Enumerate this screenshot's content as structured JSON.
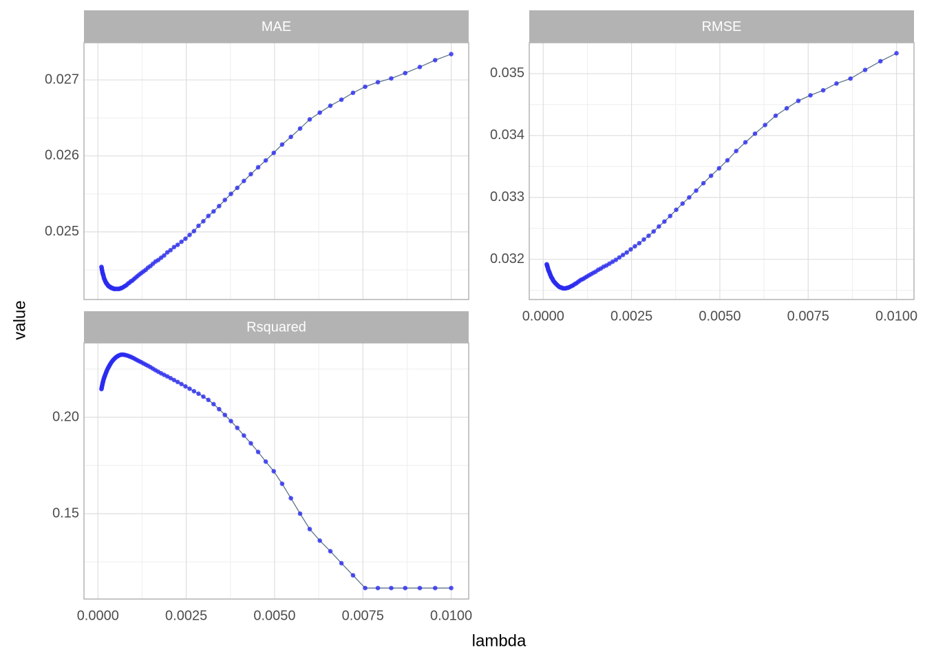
{
  "chart_data": {
    "type": "line",
    "xlabel": "lambda",
    "ylabel": "value",
    "grid": true,
    "line_color": "#5a7388",
    "point_color": "#2b2bf0",
    "xlim": [
      -0.000395,
      0.010495
    ],
    "xticks": [
      {
        "value": 0,
        "label": "0.0000"
      },
      {
        "value": 0.0025,
        "label": "0.0025"
      },
      {
        "value": 0.005,
        "label": "0.0050"
      },
      {
        "value": 0.0075,
        "label": "0.0075"
      },
      {
        "value": 0.01,
        "label": "0.0100"
      }
    ],
    "x": [
      0.0001,
      0.00010476,
      0.00010975,
      0.00011498,
      0.00012045,
      0.00012619,
      0.00013219,
      0.00013849,
      0.00014508,
      0.00015199,
      0.00015923,
      0.00016681,
      0.00017475,
      0.00018307,
      0.00019179,
      0.00020092,
      0.00021049,
      0.00022051,
      0.00023101,
      0.00024201,
      0.00025354,
      0.00026561,
      0.00027826,
      0.00029151,
      0.00030539,
      0.00031993,
      0.00033516,
      0.00035112,
      0.00036784,
      0.00038535,
      0.0004037,
      0.00042292,
      0.00044306,
      0.00046416,
      0.00048626,
      0.00050941,
      0.00053367,
      0.00055908,
      0.0005857,
      0.00061359,
      0.00064281,
      0.00067342,
      0.00070548,
      0.00073907,
      0.00077426,
      0.00081113,
      0.00084975,
      0.00089022,
      0.0009326,
      0.00097701,
      0.0010235,
      0.0010723,
      0.0011233,
      0.0011768,
      0.0012328,
      0.0012915,
      0.001353,
      0.0014175,
      0.001485,
      0.0015557,
      0.0016298,
      0.0017074,
      0.0017886,
      0.0018738,
      0.001963,
      0.0020565,
      0.0021544,
      0.002257,
      0.0023645,
      0.0024771,
      0.002595,
      0.0027186,
      0.002848,
      0.0029836,
      0.0031257,
      0.0032745,
      0.0034305,
      0.0035938,
      0.0037649,
      0.0039442,
      0.004132,
      0.0043288,
      0.0045349,
      0.0047508,
      0.004977,
      0.005214,
      0.0054623,
      0.0057224,
      0.0059948,
      0.0062803,
      0.0065793,
      0.0068926,
      0.0072208,
      0.0075646,
      0.0079248,
      0.0083022,
      0.0086975,
      0.0091116,
      0.0095455,
      0.01
    ],
    "panels": [
      {
        "title": "MAE",
        "ylim": [
          0.02411,
          0.02749
        ],
        "yticks": [
          0.025,
          0.026,
          0.027
        ],
        "values": [
          0.02454,
          0.02453,
          0.02451,
          0.0245,
          0.02449,
          0.02447,
          0.02446,
          0.02445,
          0.02444,
          0.02443,
          0.02442,
          0.0244,
          0.02439,
          0.02438,
          0.02437,
          0.02436,
          0.02435,
          0.02434,
          0.02433,
          0.02432,
          0.02432,
          0.02431,
          0.0243,
          0.02429,
          0.02429,
          0.02428,
          0.02428,
          0.02427,
          0.02427,
          0.02426,
          0.02426,
          0.02426,
          0.02425,
          0.02425,
          0.02425,
          0.02425,
          0.02425,
          0.02425,
          0.02425,
          0.02425,
          0.02426,
          0.02426,
          0.02427,
          0.02428,
          0.02429,
          0.0243,
          0.02432,
          0.02433,
          0.02435,
          0.02436,
          0.02438,
          0.0244,
          0.02442,
          0.02444,
          0.02446,
          0.02448,
          0.0245,
          0.02453,
          0.02455,
          0.02458,
          0.02461,
          0.02463,
          0.02466,
          0.02469,
          0.02473,
          0.02476,
          0.0248,
          0.02483,
          0.02487,
          0.02491,
          0.02496,
          0.02501,
          0.02508,
          0.02514,
          0.02521,
          0.02527,
          0.02534,
          0.02542,
          0.0255,
          0.02558,
          0.02567,
          0.02576,
          0.02585,
          0.02594,
          0.02604,
          0.02615,
          0.02625,
          0.02636,
          0.02648,
          0.02657,
          0.02666,
          0.02674,
          0.02683,
          0.02691,
          0.02697,
          0.02702,
          0.02709,
          0.02717,
          0.02726,
          0.02734
        ]
      },
      {
        "title": "RMSE",
        "ylim": [
          0.03135,
          0.0355
        ],
        "yticks": [
          0.032,
          0.033,
          0.034,
          0.035
        ],
        "values": [
          0.03192,
          0.03191,
          0.0319,
          0.03189,
          0.03188,
          0.03187,
          0.03186,
          0.03184,
          0.03183,
          0.03182,
          0.03181,
          0.0318,
          0.03179,
          0.03178,
          0.03176,
          0.03175,
          0.03174,
          0.03172,
          0.03171,
          0.0317,
          0.03169,
          0.03168,
          0.03166,
          0.03165,
          0.03164,
          0.03163,
          0.03162,
          0.03161,
          0.0316,
          0.03159,
          0.03158,
          0.03157,
          0.03156,
          0.03155,
          0.03155,
          0.03154,
          0.03154,
          0.03153,
          0.03153,
          0.03153,
          0.03153,
          0.03154,
          0.03154,
          0.03155,
          0.03156,
          0.03157,
          0.03158,
          0.0316,
          0.03161,
          0.03163,
          0.03165,
          0.03167,
          0.03168,
          0.0317,
          0.03172,
          0.03174,
          0.03176,
          0.03178,
          0.0318,
          0.03183,
          0.03185,
          0.03188,
          0.0319,
          0.03193,
          0.03196,
          0.03199,
          0.03203,
          0.03207,
          0.03211,
          0.03216,
          0.03221,
          0.03226,
          0.03232,
          0.03238,
          0.03245,
          0.03253,
          0.03261,
          0.0327,
          0.0328,
          0.0329,
          0.033,
          0.03311,
          0.03323,
          0.03335,
          0.03347,
          0.0336,
          0.03375,
          0.03389,
          0.03403,
          0.03417,
          0.03432,
          0.03444,
          0.03456,
          0.03465,
          0.03473,
          0.03484,
          0.03492,
          0.03506,
          0.0352,
          0.03533
        ]
      },
      {
        "title": "Rsquared",
        "ylim": [
          0.10571,
          0.23857
        ],
        "yticks": [
          0.15,
          {
            "value": 0.2,
            "label": "0.20"
          }
        ],
        "values": [
          0.2146,
          0.215,
          0.2155,
          0.216,
          0.2165,
          0.217,
          0.2175,
          0.218,
          0.2185,
          0.219,
          0.2195,
          0.22,
          0.2204,
          0.2208,
          0.2213,
          0.2217,
          0.2222,
          0.2227,
          0.2232,
          0.2237,
          0.2242,
          0.2247,
          0.2252,
          0.2257,
          0.2261,
          0.2266,
          0.2271,
          0.2276,
          0.2281,
          0.2286,
          0.229,
          0.2295,
          0.2299,
          0.2303,
          0.2307,
          0.2311,
          0.2314,
          0.2317,
          0.232,
          0.2322,
          0.2324,
          0.2325,
          0.2325,
          0.2324,
          0.2323,
          0.2321,
          0.2319,
          0.2316,
          0.2313,
          0.2309,
          0.2305,
          0.23,
          0.2295,
          0.229,
          0.2285,
          0.2279,
          0.2273,
          0.2267,
          0.226,
          0.2252,
          0.2244,
          0.2236,
          0.2228,
          0.222,
          0.2212,
          0.2203,
          0.2193,
          0.2183,
          0.2172,
          0.216,
          0.2148,
          0.2135,
          0.2122,
          0.2107,
          0.209,
          0.2068,
          0.2042,
          0.2012,
          0.198,
          0.1945,
          0.1905,
          0.1865,
          0.182,
          0.177,
          0.172,
          0.1655,
          0.158,
          0.15,
          0.142,
          0.136,
          0.1305,
          0.1243,
          0.118,
          0.1114,
          0.1114,
          0.1114,
          0.1114,
          0.1114,
          0.1114,
          0.1114
        ]
      }
    ]
  }
}
